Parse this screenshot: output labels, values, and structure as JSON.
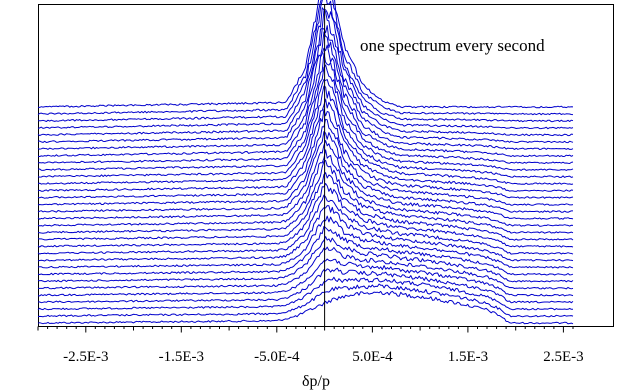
{
  "chart_data": {
    "type": "line",
    "title": "",
    "xlabel": "δp/p",
    "ylabel": "",
    "annotation": "one spectrum every second",
    "xlim": [
      -0.003,
      0.0026
    ],
    "x_tick_labels": [
      "-2.5E-3",
      "-1.5E-3",
      "-5.0E-4",
      "5.0E-4",
      "1.5E-3",
      "2.5E-3"
    ],
    "x_ticks": [
      -0.0025,
      -0.0015,
      -0.0005,
      0.0005,
      0.0015,
      0.0025
    ],
    "vertical_reference_line_at": 0,
    "grid": false,
    "legend": "none",
    "series_color": "#0000cc",
    "spectrum_count": 32,
    "style": "waterfall (successive spectra stacked vertically)",
    "first_spectrum": {
      "x": [
        -0.003,
        -0.0005,
        -0.0003,
        -0.0001,
        0.0,
        0.0001,
        0.0003,
        0.0006,
        0.001,
        0.0014,
        0.0017,
        0.00185,
        0.0019,
        0.00195,
        0.0026
      ],
      "y": [
        0.0,
        0.01,
        0.03,
        0.07,
        0.09,
        0.11,
        0.13,
        0.14,
        0.12,
        0.09,
        0.06,
        0.03,
        0.01,
        0.0,
        0.0
      ]
    },
    "last_spectrum": {
      "x": [
        -0.003,
        -0.0004,
        -0.0002,
        -0.0001,
        0.0,
        0.0001,
        0.0002,
        0.0004,
        0.0006,
        0.0008,
        0.0026
      ],
      "y": [
        0.0,
        0.02,
        0.18,
        0.4,
        0.62,
        0.5,
        0.28,
        0.1,
        0.03,
        0.0,
        0.0
      ]
    }
  }
}
